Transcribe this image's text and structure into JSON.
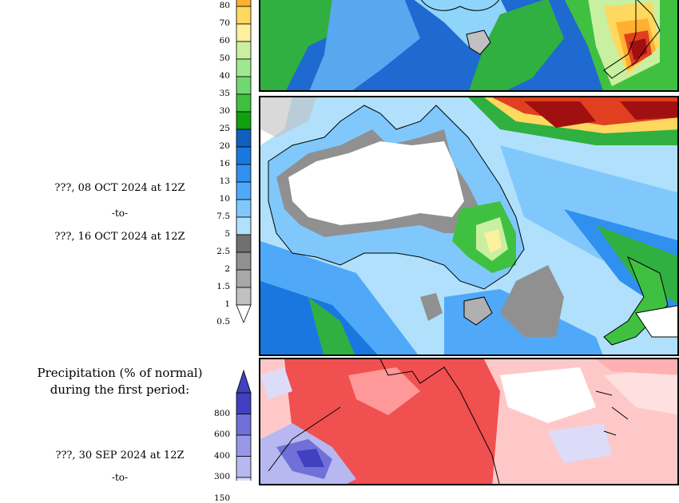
{
  "period2": {
    "start": "???, 08 OCT 2024 at 12Z",
    "sep": "-to-",
    "end": "???, 16 OCT 2024 at 12Z"
  },
  "period3": {
    "start": "???, 30 SEP 2024 at 12Z",
    "sep": "-to-"
  },
  "anomaly_title": {
    "line1": "Precipitation (% of normal)",
    "line2": "during the first period:"
  },
  "precip_scale": {
    "labels": [
      "80",
      "70",
      "60",
      "50",
      "40",
      "35",
      "30",
      "25",
      "20",
      "16",
      "13",
      "10",
      "7.5",
      "5",
      "2.5",
      "2",
      "1.5",
      "1",
      "0.5"
    ],
    "colors": [
      "#ffb030",
      "#ffd860",
      "#fff0a0",
      "#c8f0a0",
      "#a0e890",
      "#70d870",
      "#40c040",
      "#10a010",
      "#1060c0",
      "#1878e0",
      "#3090f0",
      "#50a8f8",
      "#80c8fc",
      "#b0e0fc",
      "#707070",
      "#909090",
      "#a8a8a8",
      "#c0c0c0",
      "#ffffff"
    ]
  },
  "anomaly_scale": {
    "labels": [
      "800",
      "600",
      "400",
      "300",
      "150"
    ],
    "colors": [
      "#4040c0",
      "#7070d8",
      "#9898e8",
      "#b8b8f0",
      "#dcdcf8"
    ]
  }
}
